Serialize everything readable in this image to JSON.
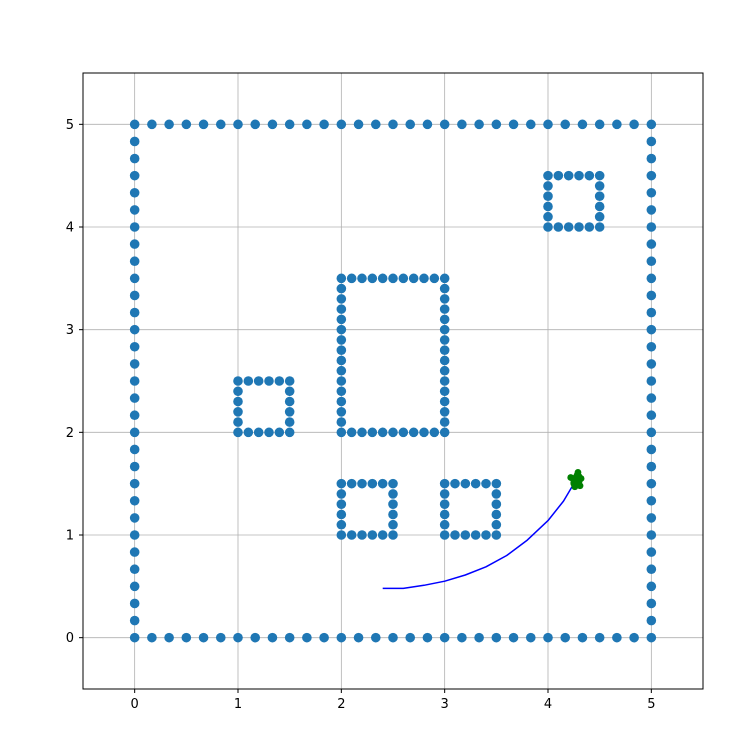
{
  "chart_data": {
    "type": "scatter",
    "title": "",
    "xlabel": "",
    "ylabel": "",
    "xlim": [
      -0.5,
      5.5
    ],
    "ylim": [
      -0.5,
      5.5
    ],
    "grid": true,
    "x_ticks": [
      0,
      1,
      2,
      3,
      4,
      5
    ],
    "y_ticks": [
      0,
      1,
      2,
      3,
      4,
      5
    ],
    "tick_labels": {
      "x": [
        "0",
        "1",
        "2",
        "3",
        "4",
        "5"
      ],
      "y": [
        "0",
        "1",
        "2",
        "3",
        "4",
        "5"
      ]
    },
    "colors": {
      "obstacle": "#1f77b4",
      "path": "#0000ff",
      "particles": "#008000",
      "grid": "#b0b0b0",
      "axes": "#000000"
    },
    "obstacles": [
      {
        "x": [
          0,
          5
        ],
        "y": [
          0,
          5
        ],
        "step": 0.1667
      },
      {
        "x": [
          1,
          1.5
        ],
        "y": [
          2,
          2.5
        ],
        "step": 0.1
      },
      {
        "x": [
          2,
          3
        ],
        "y": [
          2,
          3.5
        ],
        "step": 0.1
      },
      {
        "x": [
          4,
          4.5
        ],
        "y": [
          4,
          4.5
        ],
        "step": 0.1
      },
      {
        "x": [
          2,
          2.5
        ],
        "y": [
          1,
          1.5
        ],
        "step": 0.1
      },
      {
        "x": [
          3,
          3.5
        ],
        "y": [
          1,
          1.5
        ],
        "step": 0.1
      }
    ],
    "path": {
      "x": [
        2.4,
        2.6,
        2.8,
        3.0,
        3.2,
        3.4,
        3.6,
        3.8,
        4.0,
        4.15,
        4.28
      ],
      "y": [
        0.48,
        0.48,
        0.51,
        0.55,
        0.61,
        0.69,
        0.8,
        0.95,
        1.14,
        1.33,
        1.55
      ]
    },
    "particles": {
      "x": [
        4.22,
        4.25,
        4.28,
        4.3,
        4.32,
        4.26,
        4.29,
        4.24,
        4.31,
        4.27,
        4.3,
        4.25
      ],
      "y": [
        1.56,
        1.5,
        1.58,
        1.52,
        1.55,
        1.47,
        1.61,
        1.55,
        1.48,
        1.53,
        1.57,
        1.51
      ]
    }
  }
}
